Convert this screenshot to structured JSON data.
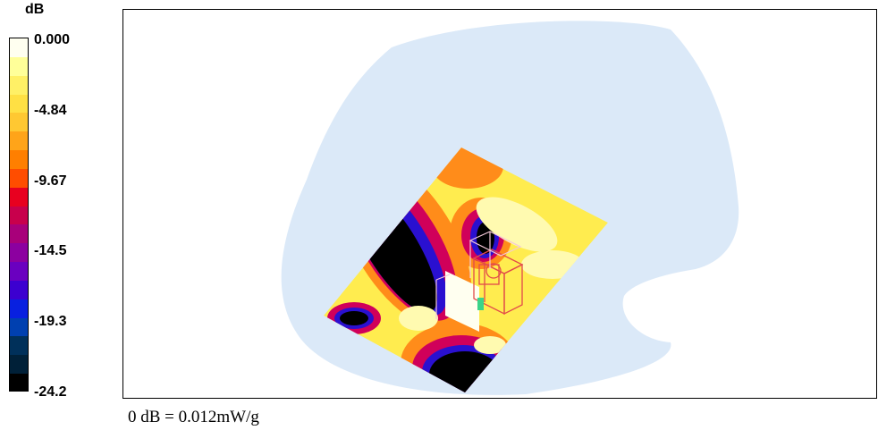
{
  "chart_data": {
    "type": "heatmap",
    "colorbar": {
      "unit": "dB",
      "ticks": [
        "0.000",
        "-4.84",
        "-9.67",
        "-14.5",
        "-19.3",
        "-24.2"
      ],
      "range": [
        -24.2,
        0.0
      ],
      "colors": [
        "#fffff0",
        "#ffff99",
        "#fff066",
        "#ffe044",
        "#ffc832",
        "#ffa419",
        "#ff7f00",
        "#ff4d00",
        "#e8001f",
        "#c8004c",
        "#a8007a",
        "#8c00a0",
        "#6a00c0",
        "#3c00d0",
        "#0820e0",
        "#0040b0",
        "#00305a",
        "#002038",
        "#000000"
      ]
    },
    "phantom_color": "#dbe9f8",
    "footnote": "0 dB = 0.012mW/g"
  }
}
